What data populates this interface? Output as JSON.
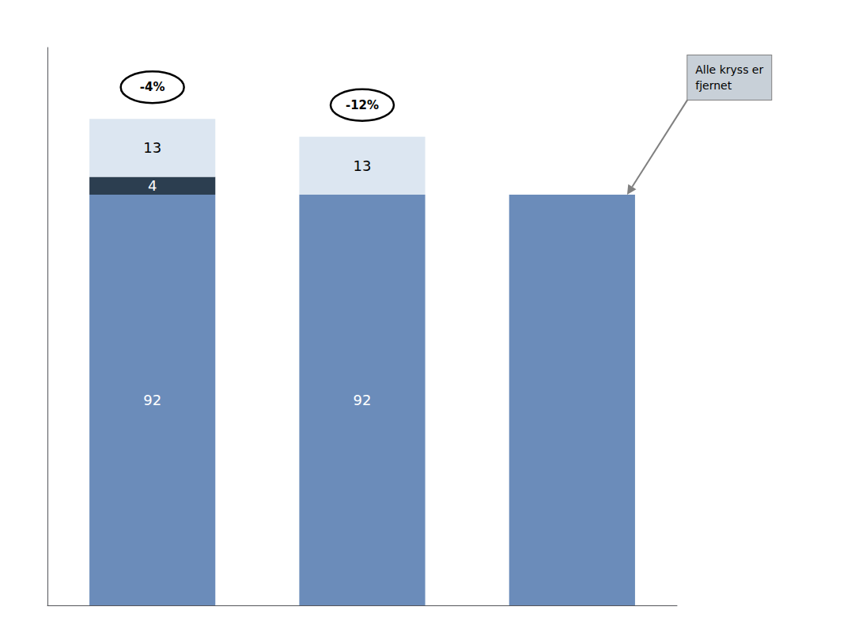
{
  "chart_data": {
    "type": "bar",
    "stacked": true,
    "categories": [
      null,
      null,
      null
    ],
    "series": [
      {
        "color": "#6b8cba",
        "values": [
          92,
          92,
          92
        ],
        "value_labels": [
          "92",
          "92",
          null
        ]
      },
      {
        "color": "#2c3e50",
        "values": [
          4,
          0,
          0
        ],
        "value_labels": [
          "4",
          null,
          null
        ]
      },
      {
        "color": "#dce6f1",
        "values": [
          13,
          13,
          0
        ],
        "value_labels": [
          "13",
          "13",
          null
        ]
      }
    ],
    "ylim": [
      0,
      125
    ],
    "yticks": [],
    "grid": false,
    "tick_labels": false,
    "data_labels": true,
    "annotations": [
      {
        "text": "-4%",
        "bar": 0
      },
      {
        "text": "-12%",
        "bar": 1
      }
    ],
    "callout": {
      "text": "Alle kryss er\nfjernet",
      "bar": 2
    }
  }
}
